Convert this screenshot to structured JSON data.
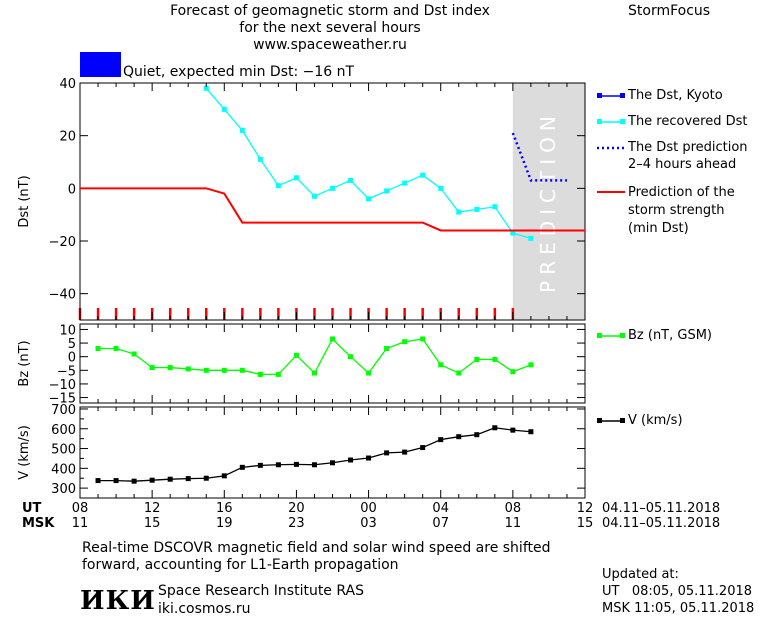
{
  "header": {
    "title_lines": [
      "Forecast of geomagnetic storm and Dst index",
      "for the next several hours",
      "www.spaceweather.ru"
    ],
    "brand": "StormFocus"
  },
  "status": {
    "label": "Quiet, expected min Dst: −16 nT",
    "color": "#0000ff"
  },
  "prediction_watermark": "PREDICTION",
  "legend": {
    "dst_kyoto": "The Dst, Kyoto",
    "recovered": "The recovered Dst",
    "prediction_lines": [
      "The Dst prediction",
      "2–4 hours ahead"
    ],
    "storm_lines": [
      "Prediction of the",
      "storm strength",
      "(min Dst)"
    ],
    "bz": "Bz (nT, GSM)",
    "v": "V (km/s)"
  },
  "time_axis": {
    "ut_label": "UT",
    "msk_label": "MSK",
    "ut_ticks": [
      "08",
      "12",
      "16",
      "20",
      "00",
      "04",
      "08",
      "12"
    ],
    "msk_ticks": [
      "11",
      "15",
      "19",
      "23",
      "03",
      "07",
      "11",
      "15"
    ],
    "date_range_ut": "04.11–05.11.2018",
    "date_range_msk": "04.11–05.11.2018"
  },
  "footer": {
    "note_lines": [
      "Real-time DSCOVR magnetic field and solar wind speed are shifted",
      "forward, accounting for L1-Earth propagation"
    ],
    "logo": "ИКИ",
    "institute": "Space Research Institute RAS",
    "site": "iki.cosmos.ru",
    "updated_label": "Updated at:",
    "updated_ut": "UT   08:05, 05.11.2018",
    "updated_msk": "MSK 11:05, 05.11.2018"
  },
  "chart_data": [
    {
      "type": "line",
      "ylabel": "Dst (nT)",
      "ylim": [
        -50,
        40
      ],
      "xlim": [
        0,
        28
      ],
      "yticks": [
        40,
        20,
        0,
        -20,
        -40
      ],
      "prediction_region_x": [
        24,
        28
      ],
      "series": [
        {
          "name": "The recovered Dst",
          "color": "#00ffff",
          "x": [
            7,
            8,
            9,
            10,
            11,
            12,
            13,
            14,
            15,
            16,
            17,
            18,
            19,
            20,
            21,
            22,
            23,
            24,
            25
          ],
          "y": [
            38,
            30,
            22,
            11,
            1,
            4,
            -3,
            0,
            3,
            -4,
            -1,
            2,
            5,
            0,
            -9,
            -8,
            -7,
            -17,
            -19
          ]
        },
        {
          "name": "The Dst prediction 2–4 hours ahead",
          "color": "#0000ff",
          "x": [
            24,
            24.5,
            25,
            26,
            27
          ],
          "y": [
            21,
            12,
            3,
            3,
            3
          ]
        },
        {
          "name": "Prediction of the storm strength (min Dst)",
          "color": "#ff0000",
          "x": [
            0,
            7,
            8,
            9,
            10,
            19,
            20,
            28
          ],
          "y": [
            0,
            0,
            -2,
            -13,
            -13,
            -13,
            -16,
            -16
          ]
        }
      ]
    },
    {
      "type": "line",
      "ylabel": "Bz (nT)",
      "ylim": [
        -17,
        12
      ],
      "xlim": [
        0,
        28
      ],
      "yticks": [
        10,
        5,
        0,
        -5,
        -10,
        -15
      ],
      "series": [
        {
          "name": "Bz (nT, GSM)",
          "color": "#00ff00",
          "x": [
            1,
            2,
            3,
            4,
            5,
            6,
            7,
            8,
            9,
            10,
            11,
            12,
            13,
            14,
            15,
            16,
            17,
            18,
            19,
            20,
            21,
            22,
            23,
            24,
            25
          ],
          "y": [
            3,
            3,
            1,
            -4,
            -4,
            -4.5,
            -5,
            -5,
            -5,
            -6.5,
            -6.5,
            0.5,
            -6,
            6.5,
            0,
            -6,
            3,
            5.5,
            6.5,
            -3,
            -6,
            -1,
            -1,
            -5.5,
            -3
          ]
        }
      ]
    },
    {
      "type": "line",
      "ylabel": "V (km/s)",
      "ylim": [
        250,
        710
      ],
      "xlim": [
        0,
        28
      ],
      "yticks": [
        700,
        600,
        500,
        400,
        300
      ],
      "minor_yticks": [
        650,
        550,
        450,
        350
      ],
      "series": [
        {
          "name": "V (km/s)",
          "color": "#000000",
          "x": [
            1,
            2,
            3,
            4,
            5,
            6,
            7,
            8,
            9,
            10,
            11,
            12,
            13,
            14,
            15,
            16,
            17,
            18,
            19,
            20,
            21,
            22,
            23,
            24,
            25
          ],
          "y": [
            338,
            338,
            335,
            340,
            345,
            348,
            350,
            362,
            405,
            415,
            418,
            420,
            418,
            428,
            442,
            452,
            478,
            482,
            505,
            545,
            560,
            570,
            605,
            593,
            585
          ]
        }
      ]
    }
  ]
}
